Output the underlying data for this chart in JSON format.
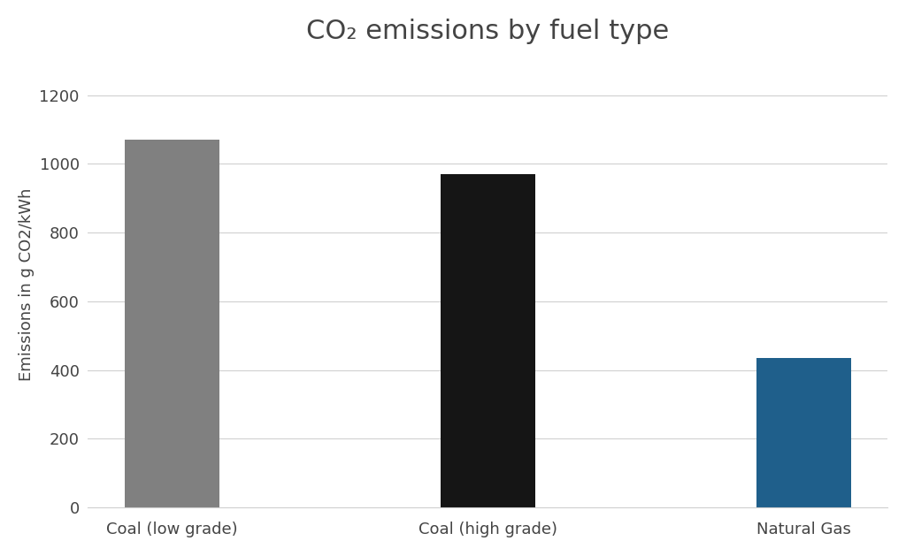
{
  "categories": [
    "Coal (low grade)",
    "Coal (high grade)",
    "Natural Gas"
  ],
  "values": [
    1070,
    970,
    435
  ],
  "bar_colors": [
    "#808080",
    "#151515",
    "#1f5f8b"
  ],
  "title": "CO₂ emissions by fuel type",
  "ylabel": "Emissions in g CO2/kWh",
  "ylim": [
    0,
    1300
  ],
  "yticks": [
    0,
    200,
    400,
    600,
    800,
    1000,
    1200
  ],
  "background_color": "#ffffff",
  "grid_color": "#d0d0d0",
  "title_fontsize": 22,
  "ylabel_fontsize": 13,
  "tick_fontsize": 13,
  "bar_width": 0.3
}
